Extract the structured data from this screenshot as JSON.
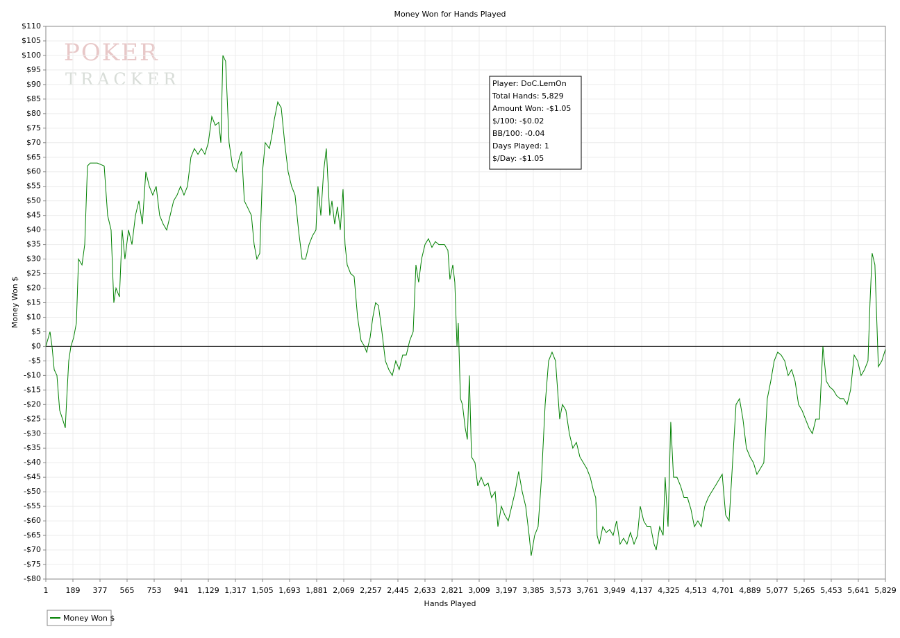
{
  "chart_data": {
    "type": "line",
    "title": "Money Won for Hands Played",
    "x_label": "Hands Played",
    "y_label": "Money Won $",
    "watermark": [
      "POKER",
      "TRACKER"
    ],
    "annotations": [
      "Player: DoC.LemOn",
      "Total Hands: 5,829",
      "Amount Won: -$1.05",
      "$/100: -$0.02",
      "BB/100: -0.04",
      "Days Played: 1",
      "$/Day: -$1.05"
    ],
    "grid": true,
    "xlim": [
      1,
      5829
    ],
    "xticks": [
      1,
      189,
      377,
      565,
      753,
      941,
      {
        "value": 1129,
        "label": "1,129"
      },
      {
        "value": 1317,
        "label": "1,317"
      },
      {
        "value": 1505,
        "label": "1,505"
      },
      {
        "value": 1693,
        "label": "1,693"
      },
      {
        "value": 1881,
        "label": "1,881"
      },
      {
        "value": 2069,
        "label": "2,069"
      },
      {
        "value": 2257,
        "label": "2,257"
      },
      {
        "value": 2445,
        "label": "2,445"
      },
      {
        "value": 2633,
        "label": "2,633"
      },
      {
        "value": 2821,
        "label": "2,821"
      },
      {
        "value": 3009,
        "label": "3,009"
      },
      {
        "value": 3197,
        "label": "3,197"
      },
      {
        "value": 3385,
        "label": "3,385"
      },
      {
        "value": 3573,
        "label": "3,573"
      },
      {
        "value": 3761,
        "label": "3,761"
      },
      {
        "value": 3949,
        "label": "3,949"
      },
      {
        "value": 4137,
        "label": "4,137"
      },
      {
        "value": 4325,
        "label": "4,325"
      },
      {
        "value": 4513,
        "label": "4,513"
      },
      {
        "value": 4701,
        "label": "4,701"
      },
      {
        "value": 4889,
        "label": "4,889"
      },
      {
        "value": 5077,
        "label": "5,077"
      },
      {
        "value": 5265,
        "label": "5,265"
      },
      {
        "value": 5453,
        "label": "5,453"
      },
      {
        "value": 5641,
        "label": "5,641"
      },
      {
        "value": 5829,
        "label": "5,829"
      }
    ],
    "ylim": [
      -80,
      110
    ],
    "yticks": [
      {
        "value": -80,
        "label": "-$80"
      },
      {
        "value": -75,
        "label": "-$75"
      },
      {
        "value": -70,
        "label": "-$70"
      },
      {
        "value": -65,
        "label": "-$65"
      },
      {
        "value": -60,
        "label": "-$60"
      },
      {
        "value": -55,
        "label": "-$55"
      },
      {
        "value": -50,
        "label": "-$50"
      },
      {
        "value": -45,
        "label": "-$45"
      },
      {
        "value": -40,
        "label": "-$40"
      },
      {
        "value": -35,
        "label": "-$35"
      },
      {
        "value": -30,
        "label": "-$30"
      },
      {
        "value": -25,
        "label": "-$25"
      },
      {
        "value": -20,
        "label": "-$20"
      },
      {
        "value": -15,
        "label": "-$15"
      },
      {
        "value": -10,
        "label": "-$10"
      },
      {
        "value": -5,
        "label": "-$5"
      },
      {
        "value": 0,
        "label": "$0"
      },
      {
        "value": 5,
        "label": "$5"
      },
      {
        "value": 10,
        "label": "$10"
      },
      {
        "value": 15,
        "label": "$15"
      },
      {
        "value": 20,
        "label": "$20"
      },
      {
        "value": 25,
        "label": "$25"
      },
      {
        "value": 30,
        "label": "$30"
      },
      {
        "value": 35,
        "label": "$35"
      },
      {
        "value": 40,
        "label": "$40"
      },
      {
        "value": 45,
        "label": "$45"
      },
      {
        "value": 50,
        "label": "$50"
      },
      {
        "value": 55,
        "label": "$55"
      },
      {
        "value": 60,
        "label": "$60"
      },
      {
        "value": 65,
        "label": "$65"
      },
      {
        "value": 70,
        "label": "$70"
      },
      {
        "value": 75,
        "label": "$75"
      },
      {
        "value": 80,
        "label": "$80"
      },
      {
        "value": 85,
        "label": "$85"
      },
      {
        "value": 90,
        "label": "$90"
      },
      {
        "value": 95,
        "label": "$95"
      },
      {
        "value": 100,
        "label": "$100"
      },
      {
        "value": 105,
        "label": "$105"
      },
      {
        "value": 110,
        "label": "$110"
      }
    ],
    "x": [
      1,
      30,
      44,
      59,
      78,
      97,
      117,
      136,
      146,
      160,
      175,
      194,
      213,
      228,
      252,
      271,
      290,
      309,
      358,
      406,
      430,
      454,
      473,
      488,
      512,
      531,
      550,
      575,
      599,
      623,
      647,
      671,
      695,
      719,
      743,
      767,
      791,
      816,
      840,
      864,
      888,
      912,
      936,
      960,
      984,
      1008,
      1032,
      1057,
      1081,
      1105,
      1129,
      1153,
      1177,
      1201,
      1216,
      1230,
      1249,
      1273,
      1297,
      1322,
      1346,
      1360,
      1379,
      1399,
      1428,
      1447,
      1466,
      1486,
      1505,
      1524,
      1553,
      1572,
      1587,
      1611,
      1635,
      1659,
      1683,
      1707,
      1731,
      1755,
      1780,
      1804,
      1828,
      1852,
      1876,
      1890,
      1910,
      1929,
      1948,
      1972,
      1987,
      2006,
      2025,
      2045,
      2064,
      2078,
      2093,
      2117,
      2141,
      2165,
      2189,
      2213,
      2228,
      2252,
      2271,
      2290,
      2310,
      2334,
      2358,
      2382,
      2406,
      2430,
      2454,
      2478,
      2503,
      2527,
      2551,
      2570,
      2589,
      2609,
      2633,
      2657,
      2681,
      2705,
      2729,
      2768,
      2792,
      2806,
      2826,
      2840,
      2855,
      2864,
      2879,
      2893,
      2912,
      2927,
      2941,
      2956,
      2980,
      2999,
      3023,
      3047,
      3071,
      3095,
      3120,
      3139,
      3163,
      3187,
      3211,
      3235,
      3259,
      3283,
      3308,
      3332,
      3356,
      3370,
      3394,
      3418,
      3442,
      3467,
      3491,
      3515,
      3539,
      3568,
      3587,
      3611,
      3635,
      3659,
      3684,
      3708,
      3732,
      3756,
      3780,
      3804,
      3818,
      3828,
      3843,
      3867,
      3891,
      3915,
      3939,
      3963,
      3987,
      4011,
      4035,
      4059,
      4084,
      4108,
      4127,
      4151,
      4175,
      4199,
      4223,
      4238,
      4262,
      4286,
      4300,
      4320,
      4339,
      4358,
      4382,
      4407,
      4431,
      4455,
      4479,
      4503,
      4527,
      4551,
      4575,
      4599,
      4623,
      4648,
      4672,
      4696,
      4720,
      4744,
      4768,
      4792,
      4816,
      4840,
      4864,
      4889,
      4913,
      4937,
      4961,
      4985,
      5009,
      5033,
      5057,
      5081,
      5105,
      5130,
      5154,
      5178,
      5202,
      5226,
      5250,
      5274,
      5298,
      5322,
      5346,
      5371,
      5395,
      5419,
      5443,
      5467,
      5491,
      5515,
      5539,
      5563,
      5587,
      5612,
      5636,
      5660,
      5684,
      5708,
      5722,
      5737,
      5756,
      5780,
      5804,
      5829
    ],
    "series": [
      {
        "name": "Money Won $",
        "color": "#008000",
        "values": [
          0,
          5,
          0,
          -8,
          -10,
          -22,
          -25,
          -28,
          -18,
          -5,
          0,
          3,
          8,
          30,
          28,
          35,
          62,
          63,
          63,
          62,
          45,
          40,
          15,
          20,
          17,
          40,
          30,
          40,
          35,
          45,
          50,
          42,
          60,
          55,
          52,
          55,
          45,
          42,
          40,
          45,
          50,
          52,
          55,
          52,
          55,
          65,
          68,
          66,
          68,
          66,
          70,
          79,
          76,
          77,
          70,
          100,
          98,
          70,
          62,
          60,
          65,
          67,
          50,
          48,
          45,
          35,
          30,
          32,
          60,
          70,
          68,
          73,
          78,
          84,
          82,
          70,
          60,
          55,
          52,
          40,
          30,
          30,
          35,
          38,
          40,
          55,
          45,
          60,
          68,
          45,
          50,
          42,
          48,
          40,
          54,
          35,
          28,
          25,
          24,
          10,
          2,
          0,
          -2,
          3,
          10,
          15,
          14,
          5,
          -5,
          -8,
          -10,
          -5,
          -8,
          -3,
          -3,
          2,
          5,
          28,
          22,
          30,
          35,
          37,
          34,
          36,
          35,
          35,
          33,
          23,
          28,
          22,
          0,
          8,
          -18,
          -20,
          -28,
          -32,
          -10,
          -38,
          -40,
          -48,
          -45,
          -48,
          -47,
          -52,
          -50,
          -62,
          -55,
          -58,
          -60,
          -55,
          -50,
          -43,
          -50,
          -55,
          -65,
          -72,
          -65,
          -62,
          -45,
          -20,
          -5,
          -2,
          -5,
          -25,
          -20,
          -22,
          -30,
          -35,
          -33,
          -38,
          -40,
          -42,
          -45,
          -50,
          -52,
          -65,
          -68,
          -62,
          -64,
          -63,
          -65,
          -60,
          -68,
          -66,
          -68,
          -64,
          -68,
          -65,
          -55,
          -60,
          -62,
          -62,
          -68,
          -70,
          -62,
          -65,
          -45,
          -62,
          -26,
          -45,
          -45,
          -48,
          -52,
          -52,
          -56,
          -62,
          -60,
          -62,
          -55,
          -52,
          -50,
          -48,
          -46,
          -44,
          -58,
          -60,
          -40,
          -20,
          -18,
          -25,
          -35,
          -38,
          -40,
          -44,
          -42,
          -40,
          -18,
          -12,
          -5,
          -2,
          -3,
          -5,
          -10,
          -8,
          -12,
          -20,
          -22,
          -25,
          -28,
          -30,
          -25,
          -25,
          0,
          -12,
          -14,
          -15,
          -17,
          -18,
          -18,
          -20,
          -15,
          -3,
          -5,
          -10,
          -8,
          -5,
          15,
          32,
          28,
          -7,
          -5,
          -1.05
        ]
      }
    ]
  }
}
